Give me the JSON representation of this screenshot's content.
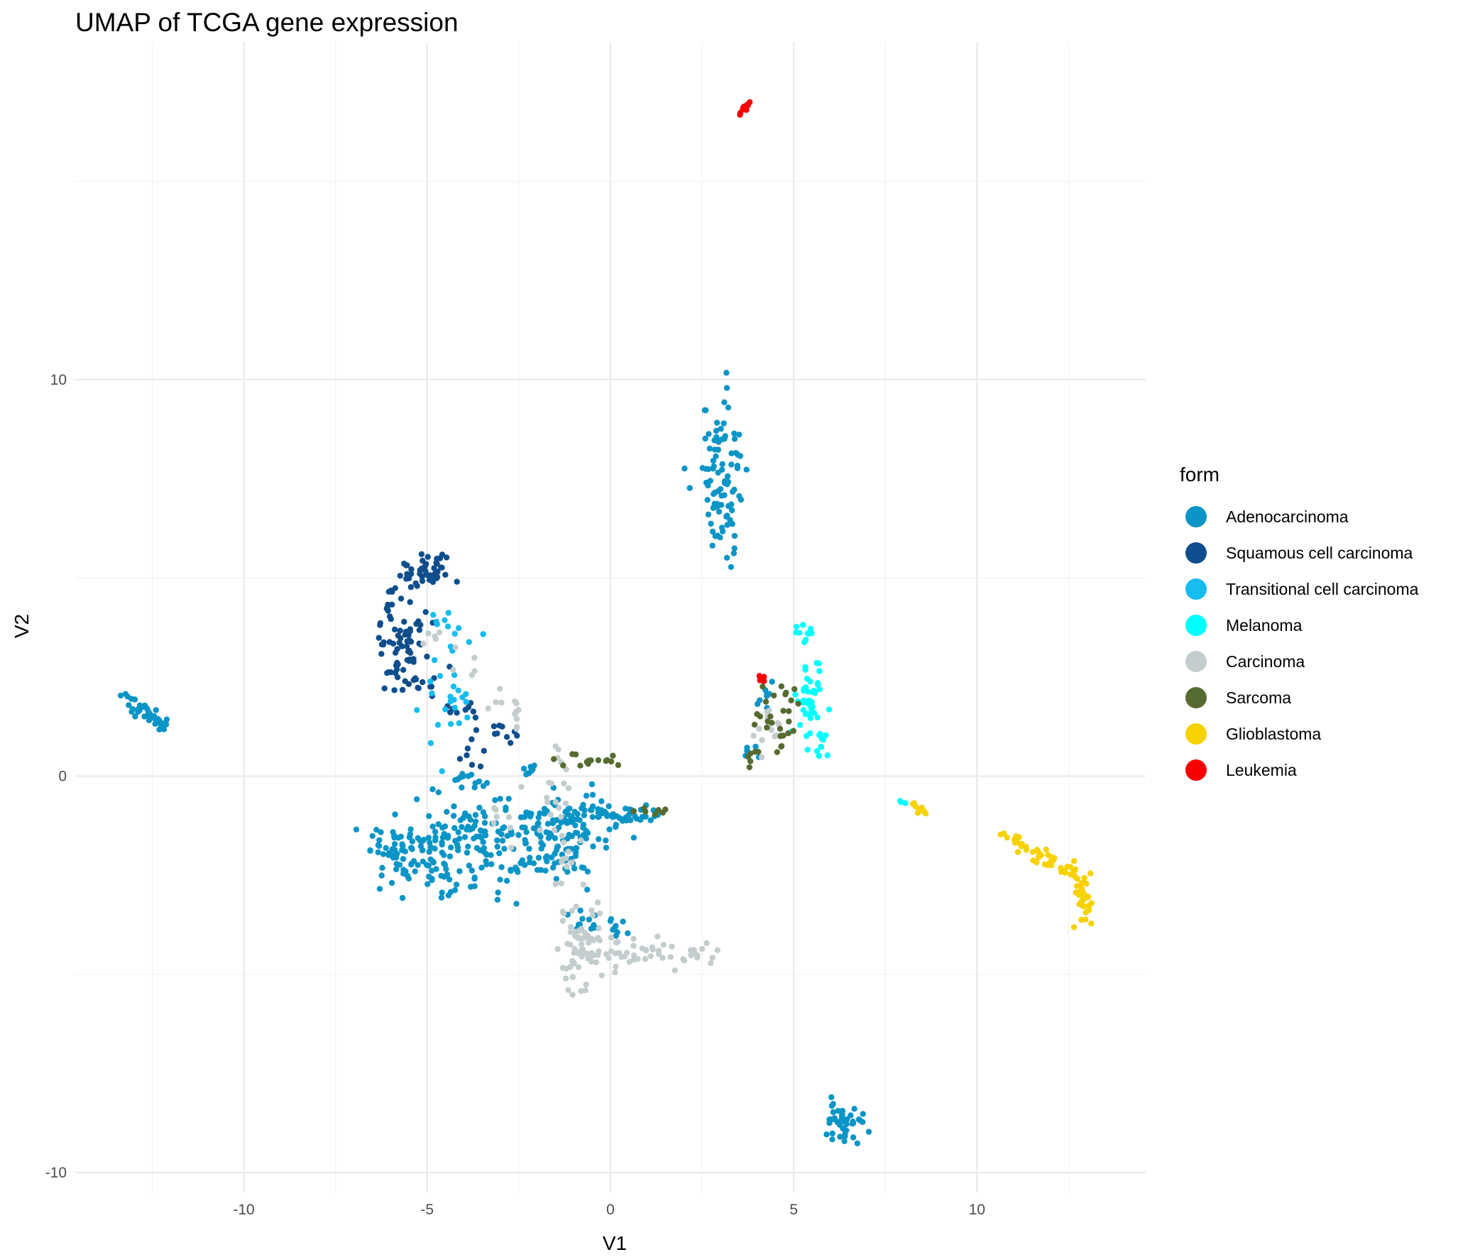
{
  "chart_data": {
    "type": "scatter",
    "title": "UMAP of TCGA gene expression",
    "xlabel": "V1",
    "ylabel": "V2",
    "xlim": [
      -14.6,
      14.6
    ],
    "ylim": [
      -10.5,
      18.5
    ],
    "x_ticks": [
      -10,
      -5,
      0,
      5,
      10
    ],
    "y_ticks": [
      -10,
      0,
      10
    ],
    "x_tick_labels": [
      "-10",
      "-5",
      "0",
      "5",
      "10"
    ],
    "y_tick_labels": [
      "-10",
      "0",
      "10"
    ],
    "grid": true,
    "legend_title": "form",
    "legend_position": "right",
    "series": [
      {
        "name": "Adenocarcinoma",
        "color": "#0b95c6",
        "clusters": [
          {
            "kind": "line",
            "from": [
              -13.4,
              2.1
            ],
            "to": [
              -11.8,
              0.95
            ],
            "n": 45,
            "spread": 0.12
          },
          {
            "kind": "blob",
            "center": [
              3.0,
              7.4
            ],
            "sd": [
              0.28,
              0.85
            ],
            "n": 95
          },
          {
            "kind": "blob",
            "center": [
              6.4,
              -8.7
            ],
            "sd": [
              0.28,
              0.28
            ],
            "n": 45
          },
          {
            "kind": "blob",
            "center": [
              -5.5,
              -1.9
            ],
            "sd": [
              0.6,
              0.45
            ],
            "n": 85
          },
          {
            "kind": "blob",
            "center": [
              -3.8,
              -1.8
            ],
            "sd": [
              0.8,
              0.6
            ],
            "n": 110
          },
          {
            "kind": "blob",
            "center": [
              -2.0,
              -1.6
            ],
            "sd": [
              0.8,
              0.55
            ],
            "n": 95
          },
          {
            "kind": "blob",
            "center": [
              -0.8,
              -1.2
            ],
            "sd": [
              0.7,
              0.45
            ],
            "n": 65
          },
          {
            "kind": "line",
            "from": [
              -0.5,
              -0.95
            ],
            "to": [
              1.4,
              -1.0
            ],
            "n": 35,
            "spread": 0.1
          },
          {
            "kind": "line",
            "from": [
              -1.0,
              -3.6
            ],
            "to": [
              0.4,
              -3.8
            ],
            "n": 20,
            "spread": 0.15
          },
          {
            "kind": "blob",
            "center": [
              -3.9,
              -0.1
            ],
            "sd": [
              0.25,
              0.1
            ],
            "n": 14
          },
          {
            "kind": "blob",
            "center": [
              4.2,
              2.0
            ],
            "sd": [
              0.15,
              0.15
            ],
            "n": 8
          },
          {
            "kind": "blob",
            "center": [
              3.9,
              0.5
            ],
            "sd": [
              0.12,
              0.12
            ],
            "n": 5
          },
          {
            "kind": "blob",
            "center": [
              -2.2,
              0.1
            ],
            "sd": [
              0.2,
              0.1
            ],
            "n": 8
          }
        ]
      },
      {
        "name": "Squamous cell carcinoma",
        "color": "#0f4e8c",
        "clusters": [
          {
            "kind": "blob",
            "center": [
              -5.0,
              5.2
            ],
            "sd": [
              0.35,
              0.25
            ],
            "n": 45
          },
          {
            "kind": "blob",
            "center": [
              -5.7,
              3.7
            ],
            "sd": [
              0.3,
              0.6
            ],
            "n": 60
          },
          {
            "kind": "blob",
            "center": [
              -5.4,
              2.5
            ],
            "sd": [
              0.45,
              0.25
            ],
            "n": 25
          },
          {
            "kind": "line",
            "from": [
              -4.3,
              1.8
            ],
            "to": [
              -2.4,
              0.95
            ],
            "n": 18,
            "spread": 0.15
          },
          {
            "kind": "blob",
            "center": [
              -3.8,
              0.6
            ],
            "sd": [
              0.25,
              0.25
            ],
            "n": 8
          }
        ]
      },
      {
        "name": "Transitional cell carcinoma",
        "color": "#15bdf0",
        "clusters": [
          {
            "kind": "blob",
            "center": [
              -4.3,
              2.2
            ],
            "sd": [
              0.35,
              0.9
            ],
            "n": 28
          },
          {
            "kind": "blob",
            "center": [
              -4.6,
              4.0
            ],
            "sd": [
              0.15,
              0.15
            ],
            "n": 6
          }
        ]
      },
      {
        "name": "Melanoma",
        "color": "#00ffff",
        "clusters": [
          {
            "kind": "blob",
            "center": [
              5.4,
              1.9
            ],
            "sd": [
              0.2,
              0.6
            ],
            "n": 45
          },
          {
            "kind": "blob",
            "center": [
              5.3,
              3.6
            ],
            "sd": [
              0.12,
              0.15
            ],
            "n": 10
          },
          {
            "kind": "blob",
            "center": [
              5.8,
              0.9
            ],
            "sd": [
              0.12,
              0.2
            ],
            "n": 10
          },
          {
            "kind": "blob",
            "center": [
              8.0,
              -0.55
            ],
            "sd": [
              0.06,
              0.06
            ],
            "n": 3
          }
        ]
      },
      {
        "name": "Carcinoma",
        "color": "#c4cdce",
        "clusters": [
          {
            "kind": "blob",
            "center": [
              -0.9,
              -4.3
            ],
            "sd": [
              0.35,
              0.6
            ],
            "n": 60
          },
          {
            "kind": "line",
            "from": [
              -0.5,
              -4.5
            ],
            "to": [
              3.0,
              -4.4
            ],
            "n": 55,
            "spread": 0.2
          },
          {
            "kind": "line",
            "from": [
              -1.4,
              0.4
            ],
            "to": [
              -1.3,
              -3.0
            ],
            "n": 30,
            "spread": 0.25
          },
          {
            "kind": "line",
            "from": [
              -4.8,
              3.6
            ],
            "to": [
              -2.4,
              1.2
            ],
            "n": 22,
            "spread": 0.2
          },
          {
            "kind": "blob",
            "center": [
              4.4,
              1.1
            ],
            "sd": [
              0.25,
              0.3
            ],
            "n": 14
          },
          {
            "kind": "blob",
            "center": [
              -2.9,
              -1.0
            ],
            "sd": [
              0.5,
              0.4
            ],
            "n": 8
          }
        ]
      },
      {
        "name": "Sarcoma",
        "color": "#566b30",
        "clusters": [
          {
            "kind": "line",
            "from": [
              -1.5,
              0.45
            ],
            "to": [
              0.3,
              0.35
            ],
            "n": 16,
            "spread": 0.1
          },
          {
            "kind": "blob",
            "center": [
              4.6,
              1.5
            ],
            "sd": [
              0.35,
              0.5
            ],
            "n": 28
          },
          {
            "kind": "line",
            "from": [
              0.5,
              -0.85
            ],
            "to": [
              1.6,
              -0.85
            ],
            "n": 8,
            "spread": 0.05
          },
          {
            "kind": "blob",
            "center": [
              3.8,
              0.5
            ],
            "sd": [
              0.1,
              0.1
            ],
            "n": 5
          }
        ]
      },
      {
        "name": "Glioblastoma",
        "color": "#f7d200",
        "clusters": [
          {
            "kind": "line",
            "from": [
              8.2,
              -0.7
            ],
            "to": [
              8.6,
              -0.95
            ],
            "n": 10,
            "spread": 0.06
          },
          {
            "kind": "line",
            "from": [
              10.8,
              -1.5
            ],
            "to": [
              12.6,
              -2.5
            ],
            "n": 45,
            "spread": 0.1
          },
          {
            "kind": "blob",
            "center": [
              12.9,
              -3.0
            ],
            "sd": [
              0.15,
              0.4
            ],
            "n": 35
          }
        ]
      },
      {
        "name": "Leukemia",
        "color": "#f90000",
        "clusters": [
          {
            "kind": "line",
            "from": [
              3.5,
              16.7
            ],
            "to": [
              3.8,
              17.0
            ],
            "n": 14,
            "spread": 0.03
          },
          {
            "kind": "blob",
            "center": [
              4.15,
              2.45
            ],
            "sd": [
              0.05,
              0.05
            ],
            "n": 6
          }
        ]
      }
    ]
  }
}
